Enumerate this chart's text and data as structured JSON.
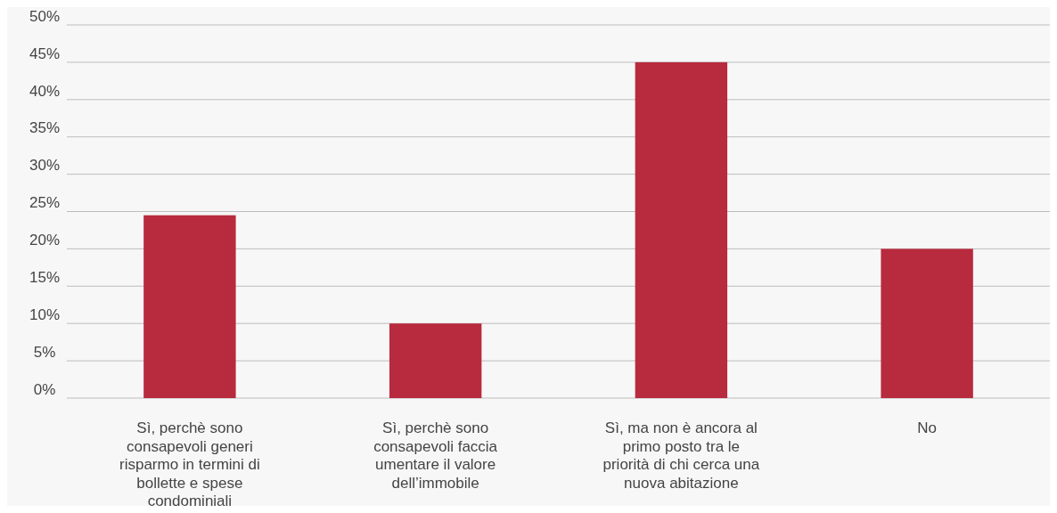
{
  "chart_data": {
    "type": "bar",
    "categories": [
      "Sì, perchè sono consapevoli generi risparmo in termini di bollette e spese condominiali",
      "Sì, perchè sono consapevoli faccia umentare il valore dell’immobile",
      "Sì, ma non è ancora al primo posto tra le priorità di chi cerca una nuova abitazione",
      "No"
    ],
    "values": [
      24.5,
      10,
      45,
      20
    ],
    "color": "#b82a3e",
    "ylim": [
      0,
      50
    ],
    "yticks": [
      {
        "value": 0,
        "label": "0%"
      },
      {
        "value": 5,
        "label": "5%"
      },
      {
        "value": 10,
        "label": "10%"
      },
      {
        "value": 15,
        "label": "15%"
      },
      {
        "value": 20,
        "label": "20%"
      },
      {
        "value": 25,
        "label": "25%"
      },
      {
        "value": 30,
        "label": "30%"
      },
      {
        "value": 35,
        "label": "35%"
      },
      {
        "value": 40,
        "label": "40%"
      },
      {
        "value": 45,
        "label": "45%"
      },
      {
        "value": 50,
        "label": "50%"
      }
    ],
    "grid": "y"
  }
}
